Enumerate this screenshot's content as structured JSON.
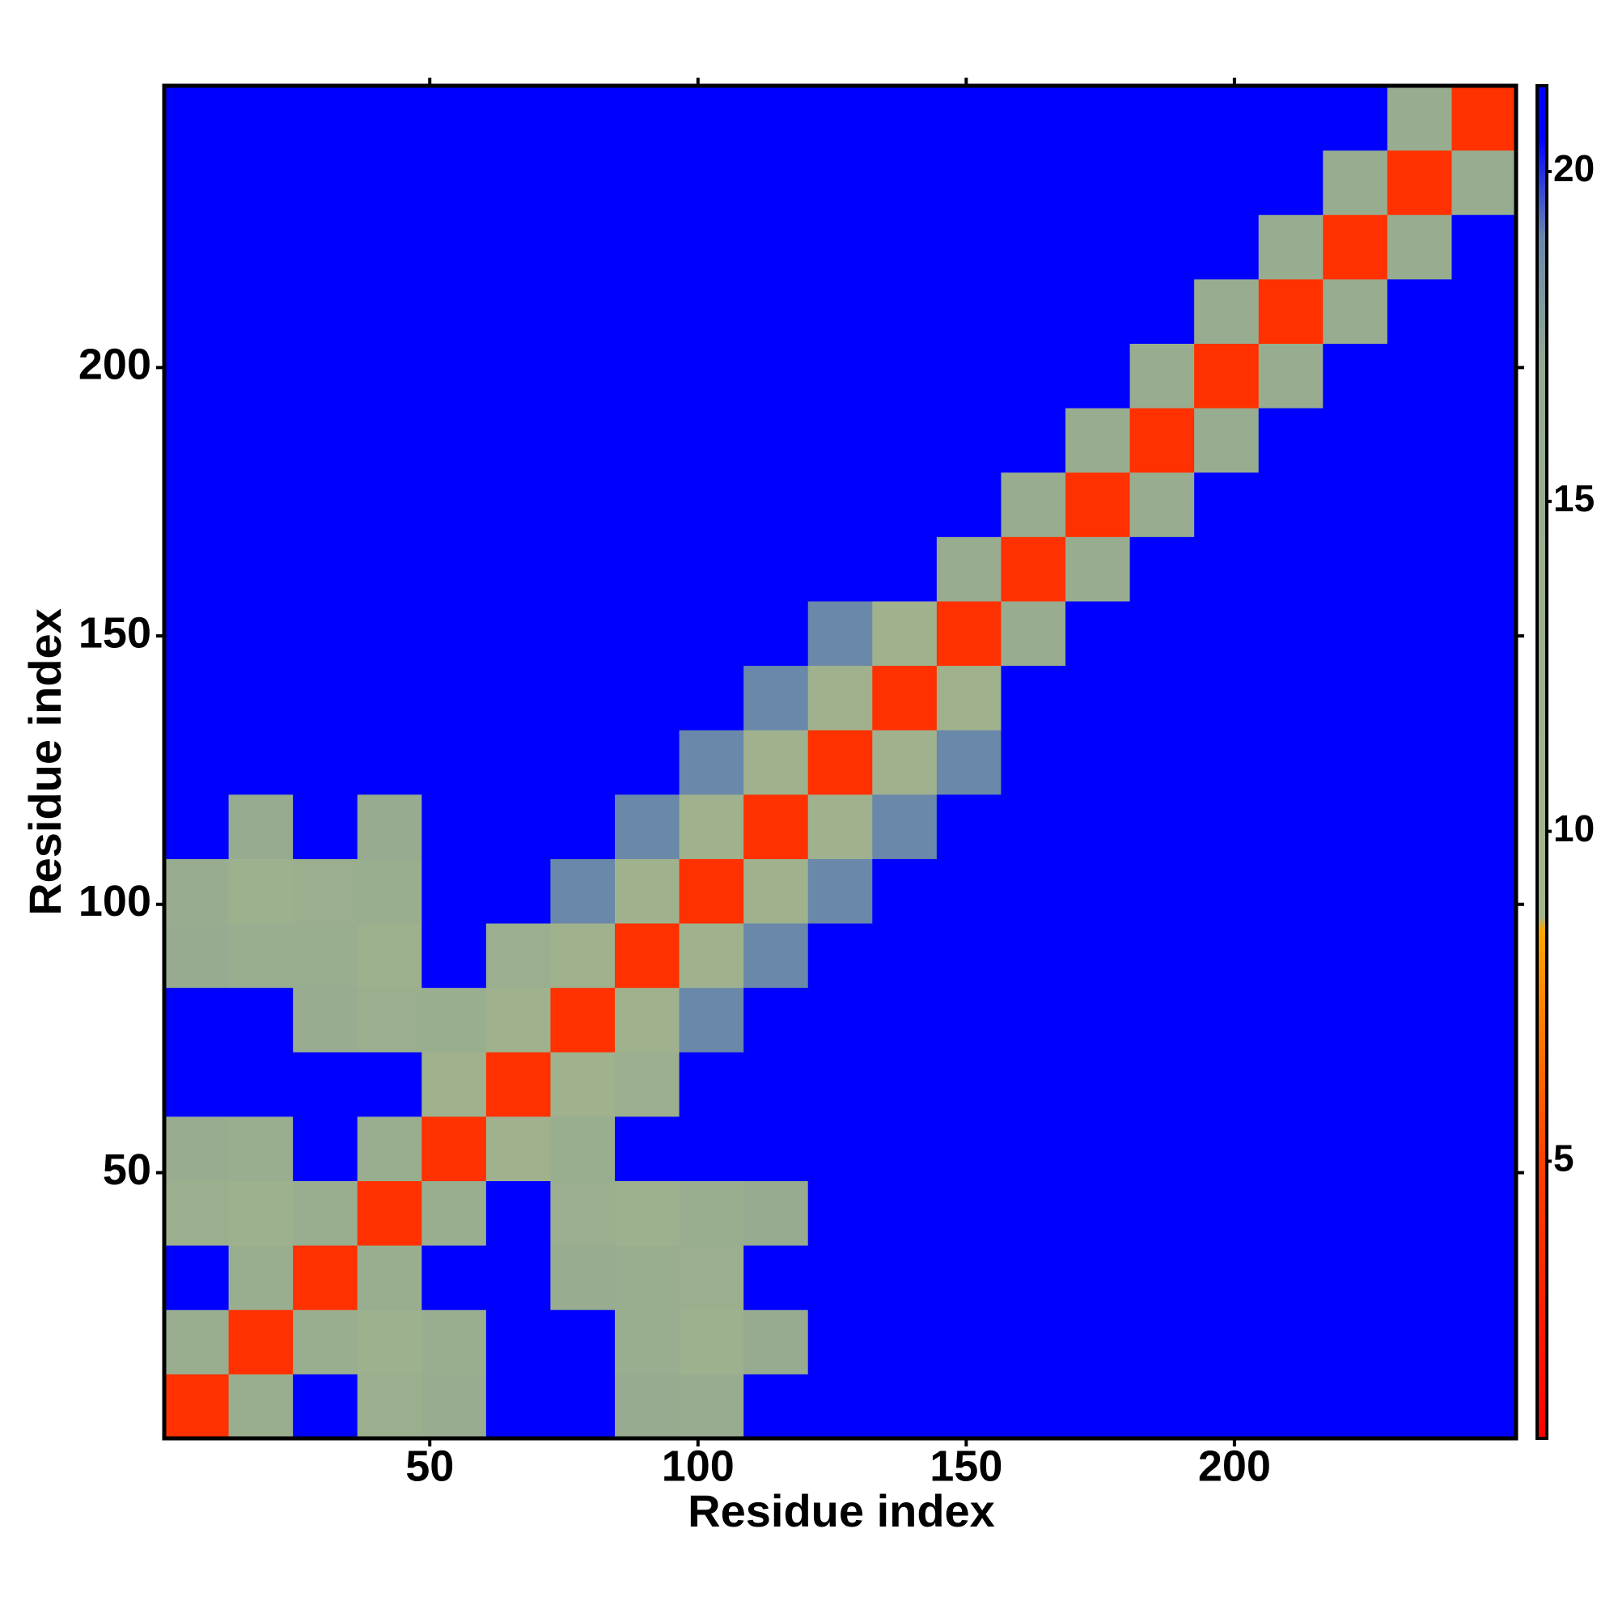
{
  "chart_data": {
    "type": "heatmap",
    "xlabel": "Residue index",
    "ylabel": "Residue index",
    "xlim": [
      0.5,
      252.5
    ],
    "ylim": [
      0.5,
      252.5
    ],
    "xticks": [
      50,
      100,
      150,
      200
    ],
    "yticks": [
      50,
      100,
      150,
      200
    ],
    "xbins": [
      0.5,
      12.5,
      24.5,
      36.5,
      48.5,
      60.5,
      72.5,
      84.5,
      96.5,
      108.5,
      120.5,
      132.5,
      144.5,
      156.5,
      168.5,
      180.5,
      192.5,
      204.5,
      216.5,
      228.5,
      240.5,
      252.5
    ],
    "ybins": [
      0.5,
      12.5,
      24.5,
      36.5,
      48.5,
      60.5,
      72.5,
      84.5,
      96.5,
      108.5,
      120.5,
      132.5,
      144.5,
      156.5,
      168.5,
      180.5,
      192.5,
      204.5,
      216.5,
      228.5,
      240.5,
      252.5
    ],
    "z": [
      [
        4,
        14,
        21,
        13,
        15,
        21,
        21,
        16,
        15,
        21,
        21,
        21,
        21,
        21,
        21,
        21,
        21,
        21,
        21,
        21,
        21
      ],
      [
        14,
        4,
        14,
        12,
        14,
        21,
        21,
        14,
        12,
        16,
        21,
        21,
        21,
        21,
        21,
        21,
        21,
        21,
        21,
        21,
        21
      ],
      [
        21,
        14,
        4,
        14,
        21,
        21,
        15,
        14,
        13,
        21,
        21,
        21,
        21,
        21,
        21,
        21,
        21,
        21,
        21,
        21,
        21
      ],
      [
        13,
        12,
        14,
        4,
        14,
        21,
        13,
        12,
        14,
        16,
        21,
        21,
        21,
        21,
        21,
        21,
        21,
        21,
        21,
        21,
        21
      ],
      [
        15,
        14,
        21,
        14,
        4,
        11,
        14,
        21,
        21,
        21,
        21,
        21,
        21,
        21,
        21,
        21,
        21,
        21,
        21,
        21,
        21
      ],
      [
        21,
        21,
        21,
        21,
        11,
        4,
        11,
        13,
        21,
        21,
        21,
        21,
        21,
        21,
        21,
        21,
        21,
        21,
        21,
        21,
        21
      ],
      [
        21,
        21,
        15,
        13,
        14,
        11,
        4,
        11,
        19,
        21,
        21,
        21,
        21,
        21,
        21,
        21,
        21,
        21,
        21,
        21,
        21
      ],
      [
        16,
        14,
        14,
        12,
        21,
        13,
        11,
        4,
        11,
        19,
        21,
        21,
        21,
        21,
        21,
        21,
        21,
        21,
        21,
        21,
        21
      ],
      [
        15,
        12,
        13,
        14,
        21,
        21,
        19,
        11,
        4,
        11,
        19,
        21,
        21,
        21,
        21,
        21,
        21,
        21,
        21,
        21,
        21
      ],
      [
        21,
        16,
        21,
        16,
        21,
        21,
        21,
        19,
        11,
        4,
        11,
        19,
        21,
        21,
        21,
        21,
        21,
        21,
        21,
        21,
        21
      ],
      [
        21,
        21,
        21,
        21,
        21,
        21,
        21,
        21,
        19,
        11,
        4,
        11,
        19,
        21,
        21,
        21,
        21,
        21,
        21,
        21,
        21
      ],
      [
        21,
        21,
        21,
        21,
        21,
        21,
        21,
        21,
        21,
        19,
        11,
        4,
        11,
        21,
        21,
        21,
        21,
        21,
        21,
        21,
        21
      ],
      [
        21,
        21,
        21,
        21,
        21,
        21,
        21,
        21,
        21,
        21,
        19,
        11,
        4,
        15,
        21,
        21,
        21,
        21,
        21,
        21,
        21
      ],
      [
        21,
        21,
        21,
        21,
        21,
        21,
        21,
        21,
        21,
        21,
        21,
        21,
        15,
        4,
        15,
        21,
        21,
        21,
        21,
        21,
        21
      ],
      [
        21,
        21,
        21,
        21,
        21,
        21,
        21,
        21,
        21,
        21,
        21,
        21,
        21,
        15,
        4,
        15,
        21,
        21,
        21,
        21,
        21
      ],
      [
        21,
        21,
        21,
        21,
        21,
        21,
        21,
        21,
        21,
        21,
        21,
        21,
        21,
        21,
        15,
        4,
        15,
        21,
        21,
        21,
        21
      ],
      [
        21,
        21,
        21,
        21,
        21,
        21,
        21,
        21,
        21,
        21,
        21,
        21,
        21,
        21,
        21,
        15,
        4,
        15,
        21,
        21,
        21
      ],
      [
        21,
        21,
        21,
        21,
        21,
        21,
        21,
        21,
        21,
        21,
        21,
        21,
        21,
        21,
        21,
        21,
        15,
        4,
        15,
        21,
        21
      ],
      [
        21,
        21,
        21,
        21,
        21,
        21,
        21,
        21,
        21,
        21,
        21,
        21,
        21,
        21,
        21,
        21,
        21,
        15,
        4,
        15,
        21
      ],
      [
        21,
        21,
        21,
        21,
        21,
        21,
        21,
        21,
        21,
        21,
        21,
        21,
        21,
        21,
        21,
        21,
        21,
        21,
        15,
        4,
        15
      ],
      [
        21,
        21,
        21,
        21,
        21,
        21,
        21,
        21,
        21,
        21,
        21,
        21,
        21,
        21,
        21,
        21,
        21,
        21,
        21,
        15,
        4
      ]
    ],
    "clim": [
      0.8,
      21.3
    ],
    "cticks": [
      5,
      10,
      15,
      20
    ],
    "colorscale": [
      [
        0.8,
        "#ff0000"
      ],
      [
        5,
        "#ff4000"
      ],
      [
        8.5,
        "#ffa500"
      ],
      [
        8.7,
        "#a3b58c"
      ],
      [
        17,
        "#94aa90"
      ],
      [
        19,
        "#6a88aa"
      ],
      [
        20.5,
        "#0000ff"
      ],
      [
        21.3,
        "#0000ff"
      ]
    ]
  }
}
